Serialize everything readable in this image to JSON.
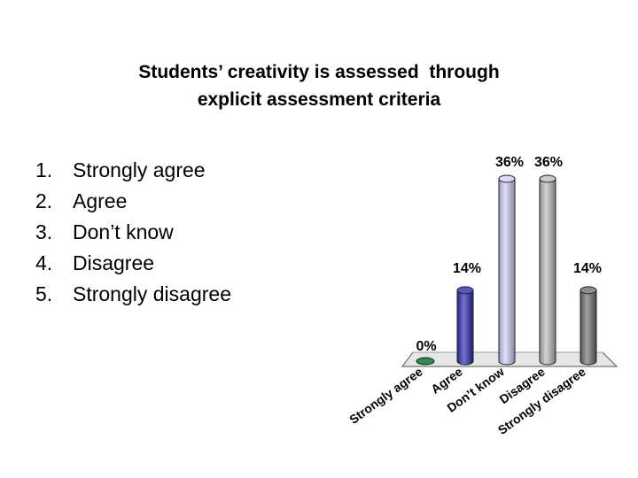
{
  "title": {
    "line1": "Students’ creativity is assessed  through",
    "line2": "explicit assessment criteria"
  },
  "options": [
    {
      "num": "1.",
      "label": "Strongly agree"
    },
    {
      "num": "2.",
      "label": "Agree"
    },
    {
      "num": "3.",
      "label": "Don’t know"
    },
    {
      "num": "4.",
      "label": "Disagree"
    },
    {
      "num": "5.",
      "label": "Strongly disagree"
    }
  ],
  "chart_data": {
    "type": "bar",
    "categories": [
      "Strongly agree",
      "Agree",
      "Don’t know",
      "Disagree",
      "Strongly disagree"
    ],
    "values": [
      0,
      14,
      36,
      36,
      14
    ],
    "data_labels": [
      "0%",
      "14%",
      "36%",
      "36%",
      "14%"
    ],
    "unit": "%",
    "ylim": [
      0,
      36
    ],
    "style": "3d-cylinder",
    "colors": [
      "#2e8b57",
      "#2b2bb0",
      "#cfd0f5",
      "#bcbcbc",
      "#707070"
    ]
  }
}
